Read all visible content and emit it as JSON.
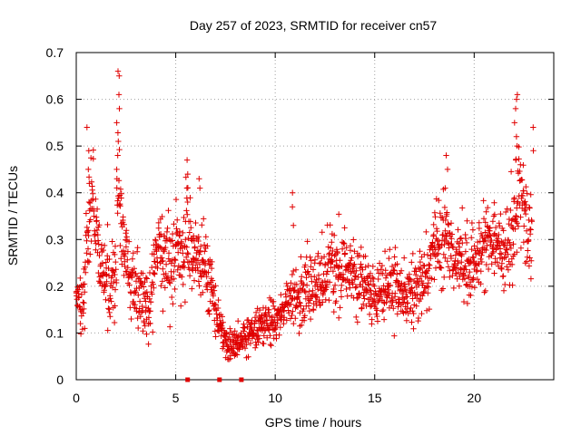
{
  "chart_data": {
    "type": "scatter",
    "title": "Day 257 of 2023, SRMTID for receiver cn57",
    "xlabel": "GPS time / hours",
    "ylabel": "SRMTID / TECUs",
    "xlim": [
      0,
      24
    ],
    "ylim": [
      0,
      0.7
    ],
    "xticks": [
      0,
      5,
      10,
      15,
      20
    ],
    "xtick_labels": [
      "0",
      "5",
      "10",
      "15",
      "20"
    ],
    "yticks": [
      0,
      0.1,
      0.2,
      0.3,
      0.4,
      0.5,
      0.6,
      0.7
    ],
    "ytick_labels": [
      "0",
      "0.1",
      "0.2",
      "0.3",
      "0.4",
      "0.5",
      "0.6",
      "0.7"
    ],
    "grid": true,
    "marker": "+",
    "color": "#e00000",
    "zero_markers_x": [
      5.6,
      7.2,
      8.3
    ],
    "series_profile": {
      "x": [
        0.0,
        0.3,
        0.6,
        0.8,
        1.2,
        1.6,
        2.0,
        2.1,
        2.3,
        2.7,
        3.2,
        3.6,
        4.0,
        4.4,
        4.8,
        5.0,
        5.3,
        5.6,
        5.9,
        6.2,
        6.5,
        7.0,
        7.3,
        7.6,
        8.0,
        8.5,
        9.0,
        9.5,
        10.0,
        10.5,
        11.0,
        11.5,
        12.0,
        12.5,
        13.0,
        13.5,
        14.0,
        14.5,
        15.0,
        15.5,
        16.0,
        16.5,
        17.0,
        17.5,
        18.0,
        18.5,
        19.0,
        19.5,
        20.0,
        20.5,
        21.0,
        21.5,
        22.0,
        22.3,
        22.6,
        22.9
      ],
      "y_center": [
        0.18,
        0.15,
        0.3,
        0.4,
        0.24,
        0.2,
        0.22,
        0.45,
        0.3,
        0.22,
        0.18,
        0.14,
        0.25,
        0.28,
        0.24,
        0.3,
        0.26,
        0.3,
        0.28,
        0.25,
        0.22,
        0.16,
        0.1,
        0.08,
        0.07,
        0.09,
        0.11,
        0.12,
        0.13,
        0.16,
        0.17,
        0.19,
        0.21,
        0.22,
        0.23,
        0.24,
        0.22,
        0.2,
        0.18,
        0.19,
        0.2,
        0.19,
        0.2,
        0.22,
        0.28,
        0.31,
        0.26,
        0.24,
        0.25,
        0.29,
        0.3,
        0.27,
        0.33,
        0.43,
        0.32,
        0.3
      ],
      "y_spread": [
        0.06,
        0.07,
        0.1,
        0.08,
        0.07,
        0.07,
        0.08,
        0.15,
        0.08,
        0.07,
        0.07,
        0.06,
        0.08,
        0.09,
        0.08,
        0.08,
        0.09,
        0.1,
        0.08,
        0.08,
        0.07,
        0.05,
        0.03,
        0.03,
        0.03,
        0.03,
        0.04,
        0.04,
        0.05,
        0.05,
        0.06,
        0.07,
        0.07,
        0.07,
        0.08,
        0.08,
        0.07,
        0.06,
        0.06,
        0.06,
        0.07,
        0.06,
        0.06,
        0.07,
        0.07,
        0.09,
        0.07,
        0.07,
        0.07,
        0.08,
        0.08,
        0.08,
        0.09,
        0.15,
        0.1,
        0.1
      ],
      "point_count": 1800,
      "peaks": [
        {
          "x": 0.6,
          "y": [
            0.45,
            0.49,
            0.54,
            0.42,
            0.38
          ]
        },
        {
          "x": 2.1,
          "y": [
            0.66,
            0.65,
            0.61,
            0.58,
            0.55,
            0.51,
            0.48,
            0.45
          ]
        },
        {
          "x": 5.6,
          "y": [
            0.47,
            0.44,
            0.41,
            0.38
          ]
        },
        {
          "x": 6.2,
          "y": [
            0.43,
            0.41
          ]
        },
        {
          "x": 10.9,
          "y": [
            0.4,
            0.37,
            0.33
          ]
        },
        {
          "x": 18.6,
          "y": [
            0.48,
            0.45,
            0.41
          ]
        },
        {
          "x": 22.1,
          "y": [
            0.61,
            0.6,
            0.58,
            0.55,
            0.52,
            0.5,
            0.47
          ]
        },
        {
          "x": 22.9,
          "y": [
            0.54,
            0.49
          ]
        }
      ]
    }
  }
}
